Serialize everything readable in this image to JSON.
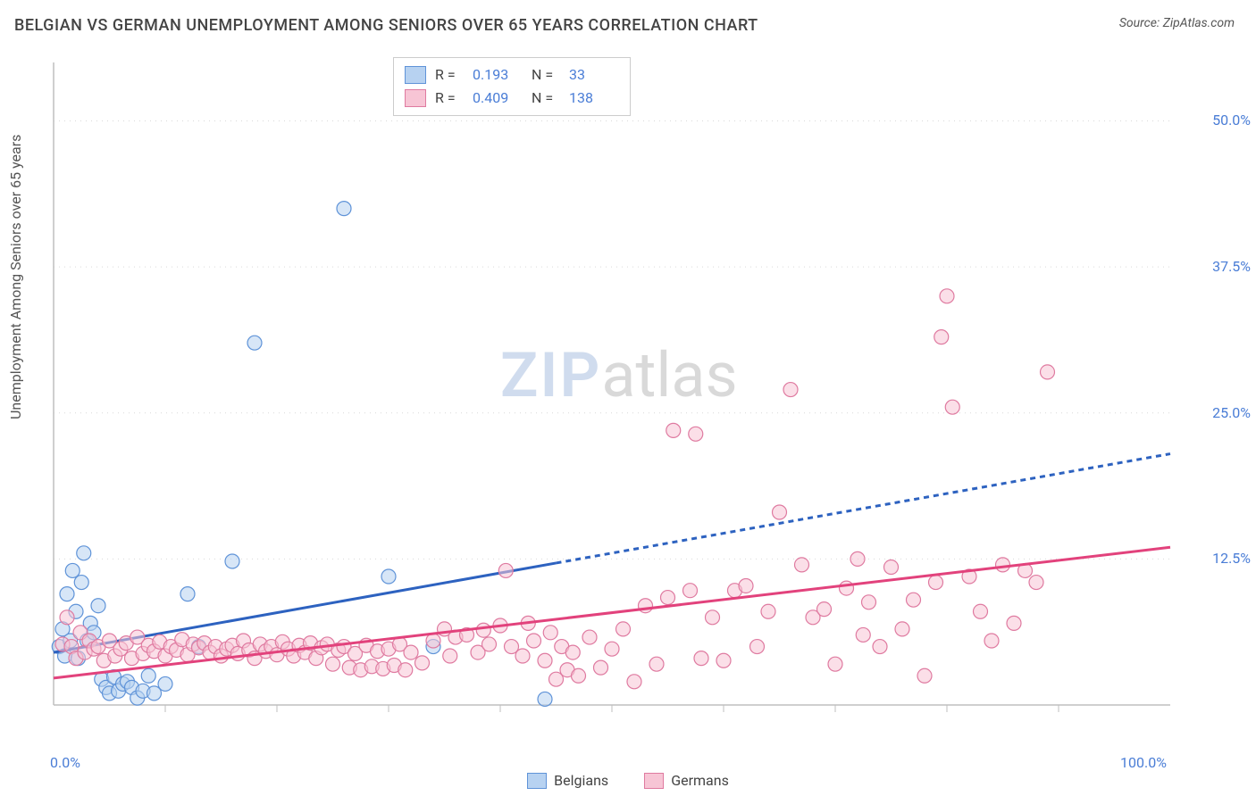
{
  "title": "BELGIAN VS GERMAN UNEMPLOYMENT AMONG SENIORS OVER 65 YEARS CORRELATION CHART",
  "source_label": "Source: ZipAtlas.com",
  "ylabel": "Unemployment Among Seniors over 65 years",
  "watermark": {
    "part1": "ZIP",
    "part2": "atlas"
  },
  "chart": {
    "type": "scatter",
    "xlim": [
      0,
      100
    ],
    "ylim": [
      0,
      55
    ],
    "x_tick_labels": {
      "0": "0.0%",
      "100": "100.0%"
    },
    "y_tick_labels": {
      "12.5": "12.5%",
      "25": "25.0%",
      "37.5": "37.5%",
      "50": "50.0%"
    },
    "x_minor_ticks": [
      10,
      20,
      30,
      40,
      50,
      60,
      70,
      80,
      90
    ],
    "y_gridlines": [
      12.5,
      25,
      37.5,
      50
    ],
    "grid_color": "#d9d9d9",
    "grid_dash": "1,5",
    "axis_color": "#bfbfbf",
    "background_color": "#ffffff",
    "marker_radius": 8,
    "marker_stroke_width": 1.2,
    "line_width": 3,
    "line_dash": "6,5"
  },
  "series": [
    {
      "name": "Belgians",
      "fill": "#b7d2f1",
      "stroke": "#5f93d8",
      "line_color": "#2d62c0",
      "R": "0.193",
      "N": "33",
      "regression": {
        "x0": 0,
        "y0": 4.5,
        "x1": 100,
        "y1": 21.5,
        "solid_until_x": 45
      },
      "points": [
        [
          0.5,
          5.0
        ],
        [
          0.8,
          6.5
        ],
        [
          1.0,
          4.2
        ],
        [
          1.2,
          9.5
        ],
        [
          1.5,
          5.5
        ],
        [
          1.7,
          11.5
        ],
        [
          2.0,
          8.0
        ],
        [
          2.2,
          4.0
        ],
        [
          2.5,
          10.5
        ],
        [
          2.7,
          13.0
        ],
        [
          3.0,
          5.5
        ],
        [
          3.3,
          7.0
        ],
        [
          3.6,
          6.2
        ],
        [
          4.0,
          8.5
        ],
        [
          4.3,
          2.2
        ],
        [
          4.7,
          1.5
        ],
        [
          5.0,
          1.0
        ],
        [
          5.4,
          2.4
        ],
        [
          5.8,
          1.2
        ],
        [
          6.2,
          1.8
        ],
        [
          6.6,
          2.0
        ],
        [
          7.0,
          1.5
        ],
        [
          7.5,
          0.6
        ],
        [
          8.0,
          1.2
        ],
        [
          8.5,
          2.5
        ],
        [
          9.0,
          1.0
        ],
        [
          10.0,
          1.8
        ],
        [
          12.0,
          9.5
        ],
        [
          13.0,
          5.0
        ],
        [
          16.0,
          12.3
        ],
        [
          18.0,
          31.0
        ],
        [
          26.0,
          42.5
        ],
        [
          30.0,
          11.0
        ],
        [
          34.0,
          5.0
        ],
        [
          44.0,
          0.5
        ]
      ]
    },
    {
      "name": "Germans",
      "fill": "#f7c5d5",
      "stroke": "#df7aa0",
      "line_color": "#e2427c",
      "R": "0.409",
      "N": "138",
      "regression": {
        "x0": 0,
        "y0": 2.3,
        "x1": 100,
        "y1": 13.5,
        "solid_until_x": 100
      },
      "points": [
        [
          0.8,
          5.2
        ],
        [
          1.2,
          7.5
        ],
        [
          1.6,
          5.0
        ],
        [
          2.0,
          4.0
        ],
        [
          2.4,
          6.2
        ],
        [
          2.8,
          4.5
        ],
        [
          3.2,
          5.5
        ],
        [
          3.6,
          4.8
        ],
        [
          4.0,
          5.0
        ],
        [
          4.5,
          3.8
        ],
        [
          5.0,
          5.5
        ],
        [
          5.5,
          4.2
        ],
        [
          6.0,
          4.8
        ],
        [
          6.5,
          5.3
        ],
        [
          7.0,
          4.0
        ],
        [
          7.5,
          5.8
        ],
        [
          8.0,
          4.4
        ],
        [
          8.5,
          5.1
        ],
        [
          9.0,
          4.6
        ],
        [
          9.5,
          5.4
        ],
        [
          10.0,
          4.2
        ],
        [
          10.5,
          5.0
        ],
        [
          11.0,
          4.7
        ],
        [
          11.5,
          5.6
        ],
        [
          12.0,
          4.3
        ],
        [
          12.5,
          5.2
        ],
        [
          13.0,
          4.9
        ],
        [
          13.5,
          5.3
        ],
        [
          14.0,
          4.5
        ],
        [
          14.5,
          5.0
        ],
        [
          15.0,
          4.2
        ],
        [
          15.5,
          4.8
        ],
        [
          16.0,
          5.1
        ],
        [
          16.5,
          4.4
        ],
        [
          17.0,
          5.5
        ],
        [
          17.5,
          4.7
        ],
        [
          18.0,
          4.0
        ],
        [
          18.5,
          5.2
        ],
        [
          19.0,
          4.6
        ],
        [
          19.5,
          5.0
        ],
        [
          20.0,
          4.3
        ],
        [
          20.5,
          5.4
        ],
        [
          21.0,
          4.8
        ],
        [
          21.5,
          4.2
        ],
        [
          22.0,
          5.1
        ],
        [
          22.5,
          4.5
        ],
        [
          23.0,
          5.3
        ],
        [
          23.5,
          4.0
        ],
        [
          24.0,
          4.9
        ],
        [
          24.5,
          5.2
        ],
        [
          25.0,
          3.5
        ],
        [
          25.5,
          4.7
        ],
        [
          26.0,
          5.0
        ],
        [
          26.5,
          3.2
        ],
        [
          27.0,
          4.4
        ],
        [
          27.5,
          3.0
        ],
        [
          28.0,
          5.1
        ],
        [
          28.5,
          3.3
        ],
        [
          29.0,
          4.6
        ],
        [
          29.5,
          3.1
        ],
        [
          30.0,
          4.8
        ],
        [
          30.5,
          3.4
        ],
        [
          31.0,
          5.2
        ],
        [
          31.5,
          3.0
        ],
        [
          32.0,
          4.5
        ],
        [
          33.0,
          3.6
        ],
        [
          34.0,
          5.5
        ],
        [
          35.0,
          6.5
        ],
        [
          35.5,
          4.2
        ],
        [
          36.0,
          5.8
        ],
        [
          37.0,
          6.0
        ],
        [
          38.0,
          4.5
        ],
        [
          38.5,
          6.4
        ],
        [
          39.0,
          5.2
        ],
        [
          40.0,
          6.8
        ],
        [
          40.5,
          11.5
        ],
        [
          41.0,
          5.0
        ],
        [
          42.0,
          4.2
        ],
        [
          42.5,
          7.0
        ],
        [
          43.0,
          5.5
        ],
        [
          44.0,
          3.8
        ],
        [
          44.5,
          6.2
        ],
        [
          45.0,
          2.2
        ],
        [
          45.5,
          5.0
        ],
        [
          46.0,
          3.0
        ],
        [
          46.5,
          4.5
        ],
        [
          47.0,
          2.5
        ],
        [
          48.0,
          5.8
        ],
        [
          49.0,
          3.2
        ],
        [
          50.0,
          4.8
        ],
        [
          51.0,
          6.5
        ],
        [
          52.0,
          2.0
        ],
        [
          53.0,
          8.5
        ],
        [
          54.0,
          3.5
        ],
        [
          55.0,
          9.2
        ],
        [
          55.5,
          23.5
        ],
        [
          57.0,
          9.8
        ],
        [
          57.5,
          23.2
        ],
        [
          58.0,
          4.0
        ],
        [
          59.0,
          7.5
        ],
        [
          60.0,
          3.8
        ],
        [
          61.0,
          9.8
        ],
        [
          62.0,
          10.2
        ],
        [
          63.0,
          5.0
        ],
        [
          64.0,
          8.0
        ],
        [
          65.0,
          16.5
        ],
        [
          66.0,
          27.0
        ],
        [
          67.0,
          12.0
        ],
        [
          68.0,
          7.5
        ],
        [
          69.0,
          8.2
        ],
        [
          70.0,
          3.5
        ],
        [
          71.0,
          10.0
        ],
        [
          72.0,
          12.5
        ],
        [
          72.5,
          6.0
        ],
        [
          73.0,
          8.8
        ],
        [
          74.0,
          5.0
        ],
        [
          75.0,
          11.8
        ],
        [
          76.0,
          6.5
        ],
        [
          77.0,
          9.0
        ],
        [
          78.0,
          2.5
        ],
        [
          79.0,
          10.5
        ],
        [
          79.5,
          31.5
        ],
        [
          80.0,
          35.0
        ],
        [
          80.5,
          25.5
        ],
        [
          82.0,
          11.0
        ],
        [
          83.0,
          8.0
        ],
        [
          84.0,
          5.5
        ],
        [
          85.0,
          12.0
        ],
        [
          86.0,
          7.0
        ],
        [
          87.0,
          11.5
        ],
        [
          88.0,
          10.5
        ],
        [
          89.0,
          28.5
        ]
      ]
    }
  ],
  "stats_legend_labels": {
    "R": "R  =",
    "N": "N  ="
  },
  "bottom_legend": [
    {
      "label": "Belgians",
      "fill": "#b7d2f1",
      "stroke": "#5f93d8"
    },
    {
      "label": "Germans",
      "fill": "#f7c5d5",
      "stroke": "#df7aa0"
    }
  ]
}
